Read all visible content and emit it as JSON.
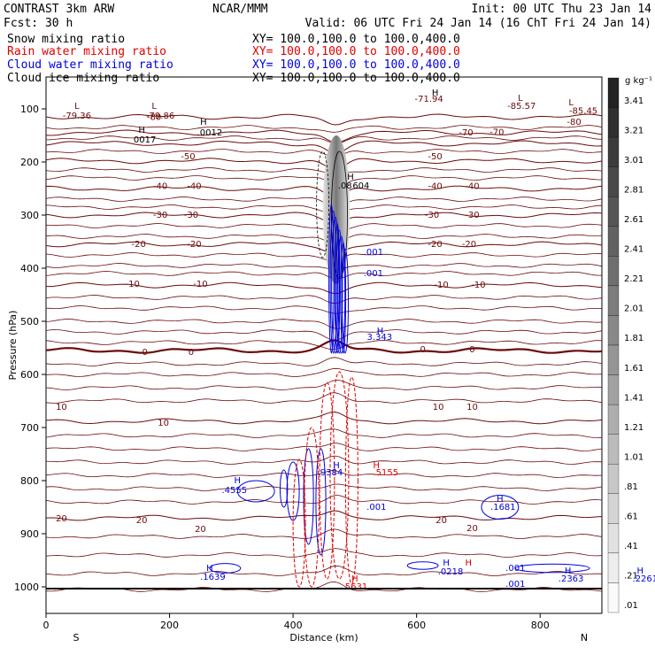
{
  "header": {
    "model": "CONTRAST  3km ARW",
    "center": "NCAR/MMM",
    "init": "Init: 00 UTC Thu 23 Jan 14",
    "fcst": "Fcst:   30 h",
    "valid": "Valid: 06 UTC Fri 24 Jan 14 (16 ChT Fri 24 Jan 14)",
    "xy": "XY= 100.0,100.0 to 100.0,400.0"
  },
  "fields": [
    {
      "label": "Snow mixing ratio",
      "color": "#000000"
    },
    {
      "label": "Rain water mixing ratio",
      "color": "#e00000"
    },
    {
      "label": "Cloud water mixing ratio",
      "color": "#0000e0"
    },
    {
      "label": "Cloud ice mixing ratio",
      "color": "#000000"
    }
  ],
  "chart_data": {
    "type": "contour-cross-section",
    "xlabel": "Distance (km)",
    "ylabel": "Pressure (hPa)",
    "xlim": [
      0,
      900
    ],
    "ylim": [
      1050,
      40
    ],
    "xticks": [
      0,
      200,
      400,
      600,
      800
    ],
    "yticks": [
      100,
      200,
      300,
      400,
      500,
      600,
      700,
      800,
      900,
      1000
    ],
    "x_left_label": "S",
    "x_right_label": "N",
    "colorbar": {
      "unit": "g kg⁻¹",
      "levels": [
        "3.41",
        "3.21",
        "3.01",
        "2.81",
        "2.61",
        "2.41",
        "2.21",
        "2.01",
        "1.81",
        "1.61",
        "1.41",
        "1.21",
        "1.01",
        ".81",
        ".61",
        ".41",
        ".21",
        ".01"
      ]
    },
    "temperature_isotherms": [
      {
        "value": -80,
        "p": 115
      },
      {
        "value": -70,
        "p": 145
      },
      {
        "value": -60,
        "p": 165
      },
      {
        "value": -50,
        "p": 198
      },
      {
        "value": -40,
        "p": 250
      },
      {
        "value": -30,
        "p": 300
      },
      {
        "value": -20,
        "p": 355
      },
      {
        "value": -10,
        "p": 432
      },
      {
        "value": 0,
        "p": 555
      },
      {
        "value": 10,
        "p": 688
      },
      {
        "value": 20,
        "p": 870
      }
    ],
    "isotherm_labels": [
      {
        "text": "-80",
        "x": 175,
        "p": 116
      },
      {
        "text": "-80",
        "x": 855,
        "p": 125
      },
      {
        "text": "-70",
        "x": 680,
        "p": 145
      },
      {
        "text": "-70",
        "x": 730,
        "p": 144
      },
      {
        "text": "-50",
        "x": 230,
        "p": 190
      },
      {
        "text": "-50",
        "x": 630,
        "p": 190
      },
      {
        "text": "-40",
        "x": 185,
        "p": 246
      },
      {
        "text": "-40",
        "x": 240,
        "p": 246
      },
      {
        "text": "-40",
        "x": 630,
        "p": 246
      },
      {
        "text": "-40",
        "x": 690,
        "p": 246
      },
      {
        "text": "-30",
        "x": 185,
        "p": 300
      },
      {
        "text": "-30",
        "x": 235,
        "p": 300
      },
      {
        "text": "-30",
        "x": 625,
        "p": 300
      },
      {
        "text": "-30",
        "x": 690,
        "p": 300
      },
      {
        "text": "-20",
        "x": 150,
        "p": 355
      },
      {
        "text": "-20",
        "x": 240,
        "p": 355
      },
      {
        "text": "-20",
        "x": 630,
        "p": 355
      },
      {
        "text": "-20",
        "x": 685,
        "p": 355
      },
      {
        "text": "-10",
        "x": 140,
        "p": 430
      },
      {
        "text": "-10",
        "x": 250,
        "p": 430
      },
      {
        "text": "-10",
        "x": 640,
        "p": 432
      },
      {
        "text": "-10",
        "x": 700,
        "p": 432
      },
      {
        "text": "0",
        "x": 160,
        "p": 558
      },
      {
        "text": "0",
        "x": 235,
        "p": 558
      },
      {
        "text": "0",
        "x": 610,
        "p": 553
      },
      {
        "text": "0",
        "x": 690,
        "p": 553
      },
      {
        "text": "10",
        "x": 25,
        "p": 662
      },
      {
        "text": "10",
        "x": 190,
        "p": 692
      },
      {
        "text": "10",
        "x": 635,
        "p": 662
      },
      {
        "text": "10",
        "x": 690,
        "p": 662
      },
      {
        "text": "20",
        "x": 25,
        "p": 872
      },
      {
        "text": "20",
        "x": 155,
        "p": 875
      },
      {
        "text": "20",
        "x": 250,
        "p": 892
      },
      {
        "text": "20",
        "x": 640,
        "p": 875
      },
      {
        "text": "20",
        "x": 690,
        "p": 890
      }
    ],
    "extrema_labels": [
      {
        "text": "L",
        "x": 50,
        "p": 95,
        "color": "#6b0a0a"
      },
      {
        "text": "-79.36",
        "x": 50,
        "p": 113,
        "color": "#6b0a0a"
      },
      {
        "text": "L",
        "x": 175,
        "p": 95,
        "color": "#6b0a0a"
      },
      {
        "text": "-79.86",
        "x": 185,
        "p": 113,
        "color": "#6b0a0a"
      },
      {
        "text": "H",
        "x": 155,
        "p": 140,
        "color": "#000000"
      },
      {
        "text": "0017",
        "x": 160,
        "p": 158,
        "color": "#000000"
      },
      {
        "text": "H",
        "x": 255,
        "p": 125,
        "color": "#000000"
      },
      {
        "text": ".0012",
        "x": 265,
        "p": 145,
        "color": "#000000"
      },
      {
        "text": "H",
        "x": 630,
        "p": 70,
        "color": "#000000"
      },
      {
        "text": "-71.94",
        "x": 620,
        "p": 82,
        "color": "#6b0a0a"
      },
      {
        "text": "L",
        "x": 768,
        "p": 80,
        "color": "#6b0a0a"
      },
      {
        "text": "-85.57",
        "x": 770,
        "p": 95,
        "color": "#6b0a0a"
      },
      {
        "text": "L",
        "x": 850,
        "p": 88,
        "color": "#6b0a0a"
      },
      {
        "text": "-85.45",
        "x": 870,
        "p": 104,
        "color": "#6b0a0a"
      },
      {
        "text": "H",
        "x": 493,
        "p": 228,
        "color": "#000000"
      },
      {
        "text": ".08",
        "x": 484,
        "p": 245,
        "color": "#000000"
      },
      {
        "text": "604",
        "x": 510,
        "p": 245,
        "color": "#000000"
      },
      {
        "text": ".001",
        "x": 530,
        "p": 370,
        "color": "#0000e0"
      },
      {
        "text": ".001",
        "x": 530,
        "p": 410,
        "color": "#0000e0"
      },
      {
        "text": "H",
        "x": 541,
        "p": 518,
        "color": "#0000e0"
      },
      {
        "text": "3.343",
        "x": 540,
        "p": 530,
        "color": "#0000e0"
      },
      {
        "text": "H",
        "x": 310,
        "p": 800,
        "color": "#0000e0"
      },
      {
        "text": ".4555",
        "x": 305,
        "p": 818,
        "color": "#0000e0"
      },
      {
        "text": "H",
        "x": 470,
        "p": 772,
        "color": "#0000e0"
      },
      {
        "text": ".9384",
        "x": 460,
        "p": 785,
        "color": "#0000e0"
      },
      {
        "text": "H",
        "x": 535,
        "p": 772,
        "color": "#e00000"
      },
      {
        "text": ".5155",
        "x": 550,
        "p": 785,
        "color": "#e00000"
      },
      {
        "text": ".001",
        "x": 535,
        "p": 850,
        "color": "#0000e0"
      },
      {
        "text": "H",
        "x": 500,
        "p": 985,
        "color": "#e00000"
      },
      {
        "text": ".5631",
        "x": 500,
        "p": 1000,
        "color": "#e00000"
      },
      {
        "text": "H",
        "x": 735,
        "p": 835,
        "color": "#0000e0"
      },
      {
        "text": ".1681",
        "x": 740,
        "p": 850,
        "color": "#0000e0"
      },
      {
        "text": "H",
        "x": 265,
        "p": 965,
        "color": "#0000e0"
      },
      {
        "text": ".1639",
        "x": 270,
        "p": 982,
        "color": "#0000e0"
      },
      {
        "text": "H",
        "x": 648,
        "p": 955,
        "color": "#0000e0"
      },
      {
        "text": ".0218",
        "x": 655,
        "p": 972,
        "color": "#0000e0"
      },
      {
        "text": "H",
        "x": 684,
        "p": 955,
        "color": "#e00000"
      },
      {
        "text": ".001",
        "x": 760,
        "p": 965,
        "color": "#0000e0"
      },
      {
        "text": ".001",
        "x": 760,
        "p": 995,
        "color": "#0000e0"
      },
      {
        "text": "H",
        "x": 845,
        "p": 970,
        "color": "#0000e0"
      },
      {
        "text": ".2363",
        "x": 850,
        "p": 985,
        "color": "#0000e0"
      },
      {
        "text": "H",
        "x": 962,
        "p": 970,
        "color": "#0000e0"
      },
      {
        "text": ".2261",
        "x": 970,
        "p": 985,
        "color": "#0000e0"
      }
    ]
  }
}
